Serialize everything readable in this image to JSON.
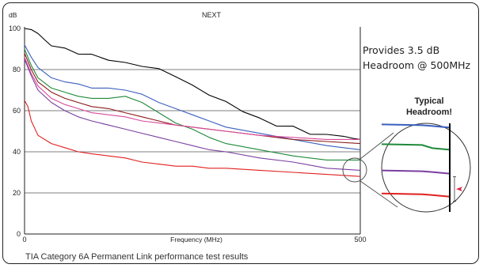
{
  "chart_data": {
    "type": "line",
    "title": "NEXT",
    "xlabel": "Frequency (MHz)",
    "ylabel": "dB",
    "xlim": [
      0,
      500
    ],
    "ylim": [
      0,
      100
    ],
    "x_ticks": [
      "0",
      "500"
    ],
    "y_ticks": [
      "0",
      "20",
      "40",
      "60",
      "80",
      "100"
    ],
    "grid": true,
    "series": [
      {
        "color": "#000000",
        "x": [
          0,
          10,
          20,
          30,
          40,
          60,
          80,
          100,
          125,
          150,
          175,
          200,
          225,
          250,
          275,
          300,
          325,
          350,
          375,
          400,
          425,
          450,
          475,
          490,
          500
        ],
        "values": [
          100,
          99,
          98,
          94,
          92,
          90,
          88,
          87,
          85,
          83,
          82,
          80,
          77,
          72,
          68,
          64,
          60,
          56,
          53,
          52,
          49,
          48,
          48,
          46,
          46
        ]
      },
      {
        "color": "#3a5fbd",
        "x": [
          0,
          10,
          20,
          40,
          60,
          80,
          100,
          125,
          150,
          175,
          200,
          225,
          250,
          275,
          300,
          350,
          400,
          450,
          500
        ],
        "values": [
          92,
          86,
          81,
          76,
          74,
          73,
          71,
          71,
          70,
          68,
          64,
          61,
          58,
          55,
          52,
          49,
          46,
          43,
          41
        ]
      },
      {
        "color": "#1f8a3a",
        "x": [
          0,
          10,
          20,
          40,
          60,
          80,
          100,
          125,
          150,
          175,
          200,
          225,
          250,
          275,
          300,
          350,
          400,
          450,
          500
        ],
        "values": [
          90,
          82,
          76,
          71,
          69,
          67,
          66,
          66,
          67,
          64,
          59,
          54,
          51,
          47,
          44,
          41,
          38,
          36,
          36
        ]
      },
      {
        "color": "#8b1a1a",
        "x": [
          0,
          10,
          20,
          40,
          60,
          80,
          100,
          125,
          150,
          175,
          200,
          225,
          250,
          275,
          300,
          350,
          400,
          450,
          500
        ],
        "values": [
          88,
          80,
          74,
          69,
          66,
          64,
          62,
          61,
          59,
          57,
          55,
          53,
          52,
          51,
          50,
          48,
          46,
          45,
          44
        ]
      },
      {
        "color": "#d94a9a",
        "x": [
          0,
          10,
          20,
          40,
          60,
          80,
          100,
          125,
          150,
          175,
          200,
          225,
          250,
          275,
          300,
          350,
          400,
          450,
          500
        ],
        "values": [
          86,
          78,
          72,
          66,
          63,
          61,
          59,
          58,
          57,
          55,
          54,
          53,
          52,
          51,
          50,
          48,
          47,
          46,
          46
        ]
      },
      {
        "color": "#7a3fa0",
        "x": [
          0,
          10,
          20,
          40,
          60,
          80,
          100,
          125,
          150,
          175,
          200,
          225,
          250,
          275,
          300,
          350,
          400,
          450,
          500
        ],
        "values": [
          85,
          77,
          70,
          64,
          60,
          57,
          55,
          53,
          51,
          49,
          47,
          45,
          43,
          41,
          40,
          37,
          35,
          32,
          31
        ]
      },
      {
        "color": "#e02020",
        "x": [
          0,
          5,
          10,
          20,
          40,
          60,
          80,
          100,
          125,
          150,
          175,
          200,
          225,
          250,
          275,
          300,
          350,
          400,
          450,
          500
        ],
        "values": [
          65,
          62,
          55,
          48,
          44,
          42,
          40,
          39,
          38,
          37,
          35,
          34,
          33,
          33,
          32,
          32,
          31,
          30,
          29,
          28
        ]
      }
    ],
    "annotations": [
      "Provides 3.5 dB",
      "Headroom @ 500MHz",
      "Typical",
      "Headroom!"
    ]
  },
  "caption": "TIA Category 6A Permanent Link performance test results",
  "colors": {
    "frame": "#222222",
    "grid": "#555555",
    "lens_bg": "#ffffff",
    "arrow": "#e02040"
  },
  "inset": {
    "lines": [
      {
        "color": "#3a5fbd",
        "level": 0.03
      },
      {
        "color": "#1f8a3a",
        "level": 0.28
      },
      {
        "color": "#7a3fa0",
        "level": 0.55
      },
      {
        "color": "#e02020",
        "level": 0.81
      }
    ]
  }
}
